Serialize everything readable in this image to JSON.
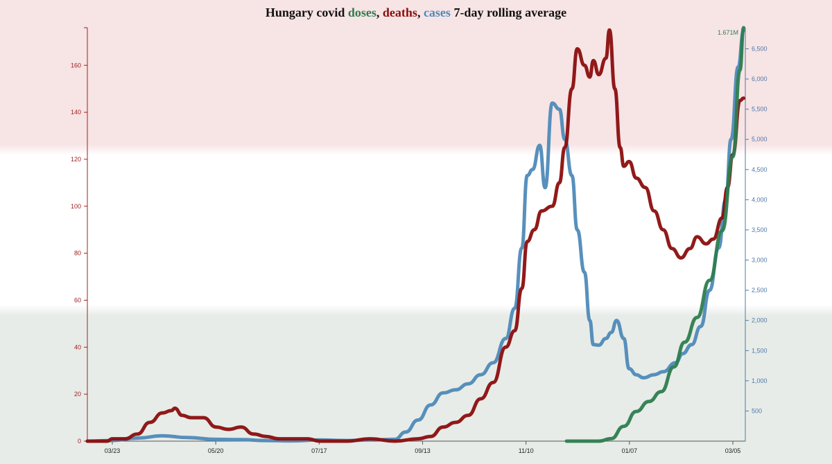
{
  "title": {
    "prefix": "Hungary covid ",
    "doses": "doses",
    "sep1": ", ",
    "deaths": "deaths",
    "sep2": ", ",
    "cases": "cases",
    "suffix": " 7-day rolling average"
  },
  "colors": {
    "deaths": "#8b0e0e",
    "cases": "#4f8ab8",
    "doses": "#2e7d4f",
    "left_axis": "#a02020",
    "right_axis": "#4f78a8",
    "band_red": "#f7e4e5",
    "band_white": "#ffffff",
    "band_green": "#e7ece8"
  },
  "chart_data": {
    "type": "line",
    "title": "Hungary covid doses, deaths, cases 7-day rolling average",
    "x_tick_labels": [
      "03/23",
      "05/20",
      "07/17",
      "09/13",
      "11/10",
      "01/07",
      "03/05"
    ],
    "left_axis": {
      "series": "deaths",
      "ylim": [
        0,
        176
      ],
      "ticks": [
        0,
        20,
        40,
        60,
        80,
        100,
        120,
        140,
        160
      ]
    },
    "right_axis": {
      "series": "cases",
      "ylim": [
        0,
        6850
      ],
      "ticks": [
        500,
        1000,
        1500,
        2000,
        2500,
        3000,
        3500,
        4000,
        4500,
        5000,
        5500,
        6000,
        6500
      ],
      "tick_labels": [
        "500",
        "1,000",
        "1,500",
        "2,000",
        "2,500",
        "3,000",
        "3,500",
        "4,000",
        "4,500",
        "5,000",
        "5,500",
        "6,000",
        "6,500"
      ]
    },
    "doses_axis": {
      "ylim": [
        0,
        1.671
      ],
      "unit": "M",
      "max_label": "1.671M"
    },
    "series": [
      {
        "name": "deaths",
        "axis": "left",
        "points": [
          [
            "03/04",
            0
          ],
          [
            "03/20",
            0
          ],
          [
            "03/23",
            1
          ],
          [
            "03/30",
            1
          ],
          [
            "04/06",
            3
          ],
          [
            "04/13",
            8
          ],
          [
            "04/20",
            12
          ],
          [
            "04/25",
            13
          ],
          [
            "04/27",
            14
          ],
          [
            "05/01",
            11
          ],
          [
            "05/06",
            10
          ],
          [
            "05/13",
            10
          ],
          [
            "05/20",
            6
          ],
          [
            "05/27",
            5
          ],
          [
            "06/03",
            6
          ],
          [
            "06/10",
            3
          ],
          [
            "06/17",
            2
          ],
          [
            "06/24",
            1
          ],
          [
            "07/01",
            1
          ],
          [
            "07/10",
            1
          ],
          [
            "07/17",
            0
          ],
          [
            "08/01",
            0
          ],
          [
            "08/14",
            1
          ],
          [
            "08/28",
            0
          ],
          [
            "09/10",
            1
          ],
          [
            "09/17",
            2
          ],
          [
            "09/24",
            6
          ],
          [
            "10/01",
            8
          ],
          [
            "10/08",
            11
          ],
          [
            "10/15",
            18
          ],
          [
            "10/22",
            25
          ],
          [
            "10/29",
            40
          ],
          [
            "11/03",
            47
          ],
          [
            "11/07",
            65
          ],
          [
            "11/10",
            85
          ],
          [
            "11/14",
            90
          ],
          [
            "11/18",
            98
          ],
          [
            "11/24",
            100
          ],
          [
            "11/28",
            110
          ],
          [
            "12/01",
            125
          ],
          [
            "12/05",
            150
          ],
          [
            "12/08",
            167
          ],
          [
            "12/12",
            160
          ],
          [
            "12/15",
            155
          ],
          [
            "12/17",
            162
          ],
          [
            "12/20",
            156
          ],
          [
            "12/24",
            163
          ],
          [
            "12/26",
            175
          ],
          [
            "12/29",
            150
          ],
          [
            "01/01",
            125
          ],
          [
            "01/03",
            117
          ],
          [
            "01/06",
            119
          ],
          [
            "01/10",
            112
          ],
          [
            "01/15",
            108
          ],
          [
            "01/20",
            98
          ],
          [
            "01/25",
            90
          ],
          [
            "01/30",
            82
          ],
          [
            "02/04",
            78
          ],
          [
            "02/09",
            82
          ],
          [
            "02/13",
            87
          ],
          [
            "02/18",
            84
          ],
          [
            "02/22",
            86
          ],
          [
            "02/27",
            95
          ],
          [
            "03/02",
            108
          ],
          [
            "03/05",
            122
          ],
          [
            "03/09",
            145
          ],
          [
            "03/11",
            146
          ]
        ]
      },
      {
        "name": "cases",
        "axis": "right",
        "points": [
          [
            "03/04",
            0
          ],
          [
            "03/23",
            10
          ],
          [
            "04/06",
            50
          ],
          [
            "04/20",
            90
          ],
          [
            "05/04",
            60
          ],
          [
            "05/20",
            30
          ],
          [
            "06/03",
            25
          ],
          [
            "06/17",
            10
          ],
          [
            "07/01",
            5
          ],
          [
            "07/17",
            20
          ],
          [
            "08/01",
            10
          ],
          [
            "08/14",
            20
          ],
          [
            "08/28",
            30
          ],
          [
            "09/03",
            150
          ],
          [
            "09/10",
            350
          ],
          [
            "09/17",
            600
          ],
          [
            "09/24",
            800
          ],
          [
            "10/01",
            850
          ],
          [
            "10/08",
            950
          ],
          [
            "10/15",
            1100
          ],
          [
            "10/22",
            1300
          ],
          [
            "10/29",
            1700
          ],
          [
            "11/03",
            2200
          ],
          [
            "11/07",
            3200
          ],
          [
            "11/10",
            4400
          ],
          [
            "11/13",
            4500
          ],
          [
            "11/17",
            4900
          ],
          [
            "11/20",
            4200
          ],
          [
            "11/24",
            5600
          ],
          [
            "11/28",
            5500
          ],
          [
            "12/01",
            5000
          ],
          [
            "12/05",
            4400
          ],
          [
            "12/08",
            3500
          ],
          [
            "12/12",
            2800
          ],
          [
            "12/15",
            2000
          ],
          [
            "12/17",
            1600
          ],
          [
            "12/20",
            1590
          ],
          [
            "12/24",
            1700
          ],
          [
            "12/27",
            1800
          ],
          [
            "12/30",
            2000
          ],
          [
            "01/03",
            1700
          ],
          [
            "01/06",
            1200
          ],
          [
            "01/10",
            1100
          ],
          [
            "01/14",
            1050
          ],
          [
            "01/20",
            1100
          ],
          [
            "01/25",
            1150
          ],
          [
            "02/01",
            1300
          ],
          [
            "02/05",
            1450
          ],
          [
            "02/10",
            1600
          ],
          [
            "02/15",
            1900
          ],
          [
            "02/20",
            2500
          ],
          [
            "02/25",
            3200
          ],
          [
            "03/01",
            4000
          ],
          [
            "03/04",
            5000
          ],
          [
            "03/08",
            6200
          ],
          [
            "03/11",
            6800
          ]
        ]
      },
      {
        "name": "doses",
        "axis": "doses",
        "points": [
          [
            "12/02",
            0
          ],
          [
            "12/20",
            0
          ],
          [
            "12/27",
            0.01
          ],
          [
            "01/03",
            0.06
          ],
          [
            "01/10",
            0.12
          ],
          [
            "01/17",
            0.16
          ],
          [
            "01/24",
            0.2
          ],
          [
            "01/31",
            0.3
          ],
          [
            "02/06",
            0.4
          ],
          [
            "02/13",
            0.5
          ],
          [
            "02/20",
            0.65
          ],
          [
            "02/27",
            0.85
          ],
          [
            "03/05",
            1.15
          ],
          [
            "03/09",
            1.5
          ],
          [
            "03/11",
            1.671
          ]
        ]
      }
    ]
  }
}
